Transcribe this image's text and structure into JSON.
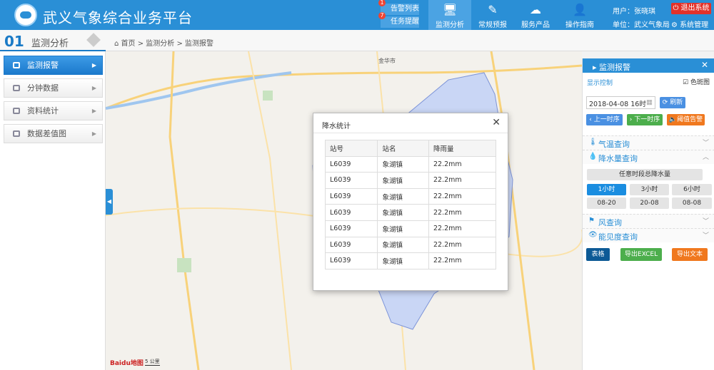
{
  "header": {
    "title": "武义气象综合业务平台",
    "alerts_label": "告警列表",
    "alerts_count": "1",
    "tasks_label": "任务提醒",
    "tasks_count": "7",
    "nav": [
      {
        "label": "监测分析",
        "icon": "monitor-icon"
      },
      {
        "label": "常规预报",
        "icon": "edit-icon"
      },
      {
        "label": "服务产品",
        "icon": "weather-icon"
      },
      {
        "label": "操作指南",
        "icon": "user-guide-icon"
      }
    ],
    "user": "用户：张晓琪",
    "unit": "单位：武义气象局",
    "logout": "退出系统",
    "sys_manage": "系统管理"
  },
  "section": {
    "number": "01",
    "title": "监测分析"
  },
  "breadcrumb": [
    "首页",
    "监测分析",
    "监测报警"
  ],
  "sidebar": {
    "items": [
      {
        "label": "监测报警",
        "active": true
      },
      {
        "label": "分钟数据"
      },
      {
        "label": "资料统计"
      },
      {
        "label": "数据差值图"
      }
    ]
  },
  "map": {
    "city_label": "金华市",
    "scale": "5 公里",
    "logo": "Baidu地图"
  },
  "dialog": {
    "title": "降水统计",
    "columns": [
      "站号",
      "站名",
      "降雨量"
    ],
    "rows": [
      [
        "L6039",
        "象湖镇",
        "22.2mm"
      ],
      [
        "L6039",
        "象湖镇",
        "22.2mm"
      ],
      [
        "L6039",
        "象湖镇",
        "22.2mm"
      ],
      [
        "L6039",
        "象湖镇",
        "22.2mm"
      ],
      [
        "L6039",
        "象湖镇",
        "22.2mm"
      ],
      [
        "L6039",
        "象湖镇",
        "22.2mm"
      ],
      [
        "L6039",
        "象湖镇",
        "22.2mm"
      ]
    ]
  },
  "panel": {
    "title": "监测报警",
    "display_control": "显示控制",
    "color_map_label": "色斑图",
    "color_map_checked": true,
    "datetime": "2018-04-08 16时",
    "refresh": "刷新",
    "prev": "上一时序",
    "next": "下一时序",
    "threshold": "阈值告警",
    "sections": {
      "temp": "气温查询",
      "rain": "降水量查询",
      "wind": "风查询",
      "visibility": "能见度查询"
    },
    "any_period": "任意时段总降水量",
    "periods": [
      "1小时",
      "3小时",
      "6小时",
      "08-20",
      "20-08",
      "08-08"
    ],
    "selected_period": "1小时",
    "table": "表格",
    "export_excel": "导出EXCEL",
    "export_text": "导出文本"
  },
  "colors": {
    "primary": "#2a8fd6",
    "green": "#4cae4c",
    "orange": "#f0781e",
    "red": "#e2322a",
    "dark_blue": "#0d5a96"
  }
}
